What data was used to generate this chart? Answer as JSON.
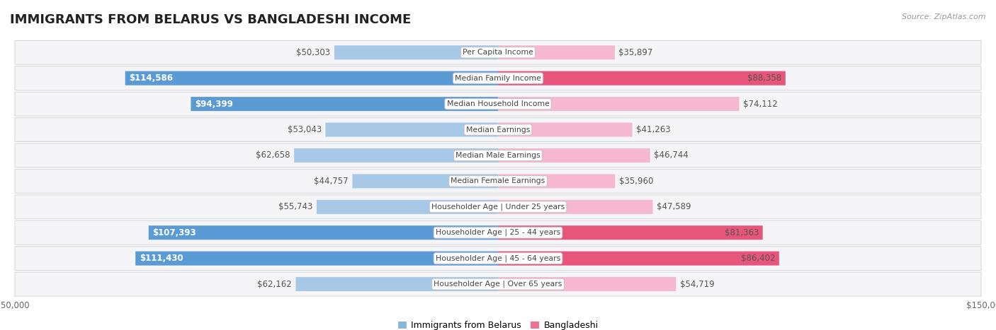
{
  "title": "IMMIGRANTS FROM BELARUS VS BANGLADESHI INCOME",
  "source": "Source: ZipAtlas.com",
  "categories": [
    "Per Capita Income",
    "Median Family Income",
    "Median Household Income",
    "Median Earnings",
    "Median Male Earnings",
    "Median Female Earnings",
    "Householder Age | Under 25 years",
    "Householder Age | 25 - 44 years",
    "Householder Age | 45 - 64 years",
    "Householder Age | Over 65 years"
  ],
  "belarus_values": [
    50303,
    114586,
    94399,
    53043,
    62658,
    44757,
    55743,
    107393,
    111430,
    62162
  ],
  "bangladeshi_values": [
    35897,
    88358,
    74112,
    41263,
    46744,
    35960,
    47589,
    81363,
    86402,
    54719
  ],
  "belarus_labels": [
    "$50,303",
    "$114,586",
    "$94,399",
    "$53,043",
    "$62,658",
    "$44,757",
    "$55,743",
    "$107,393",
    "$111,430",
    "$62,162"
  ],
  "bangladeshi_labels": [
    "$35,897",
    "$88,358",
    "$74,112",
    "$41,263",
    "$46,744",
    "$35,960",
    "$47,589",
    "$81,363",
    "$86,402",
    "$54,719"
  ],
  "max_value": 150000,
  "belarus_color_light": "#a8c8e8",
  "bangladesh_color_light": "#f5b8ce",
  "belarus_color_solid": "#5b9bd5",
  "bangladesh_color_solid": "#e8557a",
  "belarus_legend_color": "#8ab8d8",
  "bangladesh_legend_color": "#f07090",
  "label_inside_threshold": 75000,
  "background_color": "#ffffff",
  "row_bg_color": "#f5f5f8",
  "row_border_color": "#d8d8e0",
  "title_fontsize": 13,
  "label_fontsize": 8.5,
  "axis_fontsize": 8.5,
  "legend_fontsize": 9
}
